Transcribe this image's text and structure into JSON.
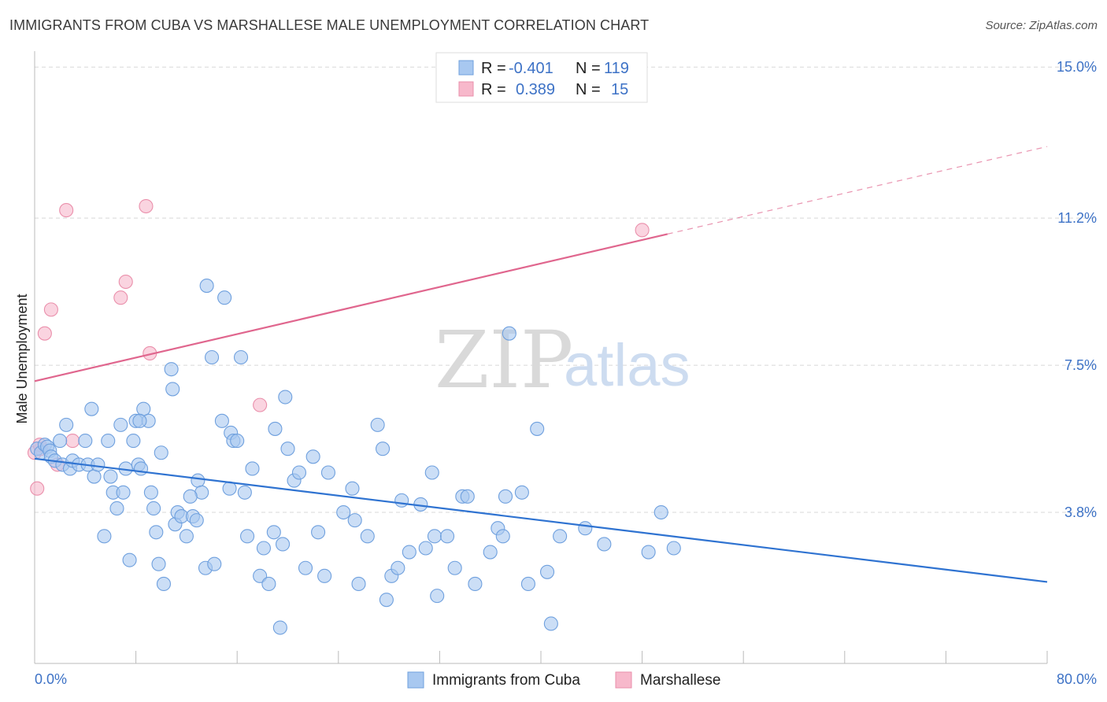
{
  "title": "IMMIGRANTS FROM CUBA VS MARSHALLESE MALE UNEMPLOYMENT CORRELATION CHART",
  "source": "Source: ZipAtlas.com",
  "watermark": {
    "zip": "ZIP",
    "atlas": "atlas"
  },
  "legend_top": {
    "rows": [
      {
        "r_label": "R =",
        "r_value": "-0.401",
        "n_label": "N =",
        "n_value": "119",
        "color": "#a8c8f0"
      },
      {
        "r_label": "R =",
        "r_value": "0.389",
        "n_label": "N =",
        "n_value": "15",
        "color": "#f7b8cb"
      }
    ]
  },
  "legend_bottom": {
    "items": [
      {
        "label": "Immigrants from Cuba",
        "color": "#a8c8f0"
      },
      {
        "label": "Marshallese",
        "color": "#f7b8cb"
      }
    ]
  },
  "chart_data": {
    "type": "scatter",
    "title": "IMMIGRANTS FROM CUBA VS MARSHALLESE MALE UNEMPLOYMENT CORRELATION CHART",
    "xlabel": "",
    "ylabel": "Male Unemployment",
    "xlim": [
      0,
      80
    ],
    "ylim": [
      0,
      15.4
    ],
    "x_tick_labels": {
      "min": "0.0%",
      "max": "80.0%"
    },
    "y_ticks": [
      {
        "value": 3.8,
        "label": "3.8%"
      },
      {
        "value": 7.5,
        "label": "7.5%"
      },
      {
        "value": 11.2,
        "label": "11.2%"
      },
      {
        "value": 15.0,
        "label": "15.0%"
      }
    ],
    "grid": true,
    "legend_position": "top-center",
    "series": [
      {
        "name": "Immigrants from Cuba",
        "color": "#a8c8f0",
        "edge_color": "#6fa0de",
        "trend_color": "#2f73d1",
        "trend": {
          "x0": 0,
          "y0": 5.15,
          "x1": 80,
          "y1": 2.05
        },
        "points": [
          [
            0.2,
            5.4
          ],
          [
            0.5,
            5.3
          ],
          [
            0.8,
            5.5
          ],
          [
            1.0,
            5.45
          ],
          [
            1.2,
            5.35
          ],
          [
            1.3,
            5.2
          ],
          [
            1.6,
            5.1
          ],
          [
            2.0,
            5.6
          ],
          [
            2.2,
            5.0
          ],
          [
            2.5,
            6.0
          ],
          [
            2.8,
            4.9
          ],
          [
            3.0,
            5.1
          ],
          [
            3.5,
            5.0
          ],
          [
            4.0,
            5.6
          ],
          [
            4.2,
            5.0
          ],
          [
            4.5,
            6.4
          ],
          [
            4.7,
            4.7
          ],
          [
            5.0,
            5.0
          ],
          [
            5.5,
            3.2
          ],
          [
            5.8,
            5.6
          ],
          [
            6.0,
            4.7
          ],
          [
            6.2,
            4.3
          ],
          [
            6.5,
            3.9
          ],
          [
            6.8,
            6.0
          ],
          [
            7.0,
            4.3
          ],
          [
            7.2,
            4.9
          ],
          [
            7.5,
            2.6
          ],
          [
            7.8,
            5.6
          ],
          [
            8.0,
            6.1
          ],
          [
            8.2,
            5.0
          ],
          [
            8.4,
            4.9
          ],
          [
            8.6,
            6.4
          ],
          [
            9.0,
            6.1
          ],
          [
            9.2,
            4.3
          ],
          [
            9.4,
            3.9
          ],
          [
            9.6,
            3.3
          ],
          [
            9.8,
            2.5
          ],
          [
            10.0,
            5.3
          ],
          [
            10.2,
            2.0
          ],
          [
            10.8,
            7.4
          ],
          [
            10.9,
            6.9
          ],
          [
            11.1,
            3.5
          ],
          [
            11.3,
            3.8
          ],
          [
            11.6,
            3.7
          ],
          [
            12.0,
            3.2
          ],
          [
            12.5,
            3.7
          ],
          [
            12.8,
            3.6
          ],
          [
            12.9,
            4.6
          ],
          [
            13.2,
            4.3
          ],
          [
            13.5,
            2.4
          ],
          [
            13.6,
            9.5
          ],
          [
            14.0,
            7.7
          ],
          [
            14.2,
            2.5
          ],
          [
            14.8,
            6.1
          ],
          [
            15.0,
            9.2
          ],
          [
            15.4,
            4.4
          ],
          [
            15.5,
            5.8
          ],
          [
            15.7,
            5.6
          ],
          [
            16.0,
            5.6
          ],
          [
            16.3,
            7.7
          ],
          [
            16.6,
            4.3
          ],
          [
            16.8,
            3.2
          ],
          [
            17.2,
            4.9
          ],
          [
            17.8,
            2.2
          ],
          [
            18.1,
            2.9
          ],
          [
            18.5,
            2.0
          ],
          [
            18.9,
            3.3
          ],
          [
            19.0,
            5.9
          ],
          [
            19.4,
            0.9
          ],
          [
            19.6,
            3.0
          ],
          [
            19.8,
            6.7
          ],
          [
            20.0,
            5.4
          ],
          [
            20.5,
            4.6
          ],
          [
            20.9,
            4.8
          ],
          [
            21.4,
            2.4
          ],
          [
            22.0,
            5.2
          ],
          [
            22.4,
            3.3
          ],
          [
            22.9,
            2.2
          ],
          [
            23.2,
            4.8
          ],
          [
            24.4,
            3.8
          ],
          [
            25.1,
            4.4
          ],
          [
            25.3,
            3.6
          ],
          [
            25.6,
            2.0
          ],
          [
            26.3,
            3.2
          ],
          [
            27.1,
            6.0
          ],
          [
            27.5,
            5.4
          ],
          [
            27.8,
            1.6
          ],
          [
            28.2,
            2.2
          ],
          [
            28.7,
            2.4
          ],
          [
            29.0,
            4.1
          ],
          [
            29.6,
            2.8
          ],
          [
            30.5,
            4.0
          ],
          [
            30.9,
            2.9
          ],
          [
            31.4,
            4.8
          ],
          [
            31.6,
            3.2
          ],
          [
            31.8,
            1.7
          ],
          [
            32.6,
            3.2
          ],
          [
            33.2,
            2.4
          ],
          [
            33.8,
            4.2
          ],
          [
            34.2,
            4.2
          ],
          [
            34.8,
            2.0
          ],
          [
            36.0,
            2.8
          ],
          [
            36.6,
            3.4
          ],
          [
            37.0,
            3.2
          ],
          [
            37.2,
            4.2
          ],
          [
            37.5,
            8.3
          ],
          [
            38.5,
            4.3
          ],
          [
            39.0,
            2.0
          ],
          [
            39.7,
            5.9
          ],
          [
            40.5,
            2.3
          ],
          [
            40.8,
            1.0
          ],
          [
            41.5,
            3.2
          ],
          [
            43.5,
            3.4
          ],
          [
            45.0,
            3.0
          ],
          [
            48.5,
            2.8
          ],
          [
            49.5,
            3.8
          ],
          [
            50.5,
            2.9
          ],
          [
            8.3,
            6.1
          ],
          [
            12.3,
            4.2
          ]
        ]
      },
      {
        "name": "Marshallese",
        "color": "#f7b8cb",
        "edge_color": "#ea8fab",
        "trend_color": "#e0668e",
        "trend": {
          "x0": 0,
          "y0": 7.1,
          "x1": 50,
          "y1": 10.8
        },
        "trend_dashed_to": {
          "x": 80,
          "y": 13.0
        },
        "points": [
          [
            0.0,
            5.3
          ],
          [
            0.2,
            4.4
          ],
          [
            0.5,
            5.4
          ],
          [
            0.8,
            8.3
          ],
          [
            1.3,
            8.9
          ],
          [
            1.8,
            5.0
          ],
          [
            2.5,
            11.4
          ],
          [
            3.0,
            5.6
          ],
          [
            6.8,
            9.2
          ],
          [
            7.2,
            9.6
          ],
          [
            8.8,
            11.5
          ],
          [
            9.1,
            7.8
          ],
          [
            17.8,
            6.5
          ],
          [
            48.0,
            10.9
          ],
          [
            0.4,
            5.5
          ]
        ]
      }
    ]
  }
}
